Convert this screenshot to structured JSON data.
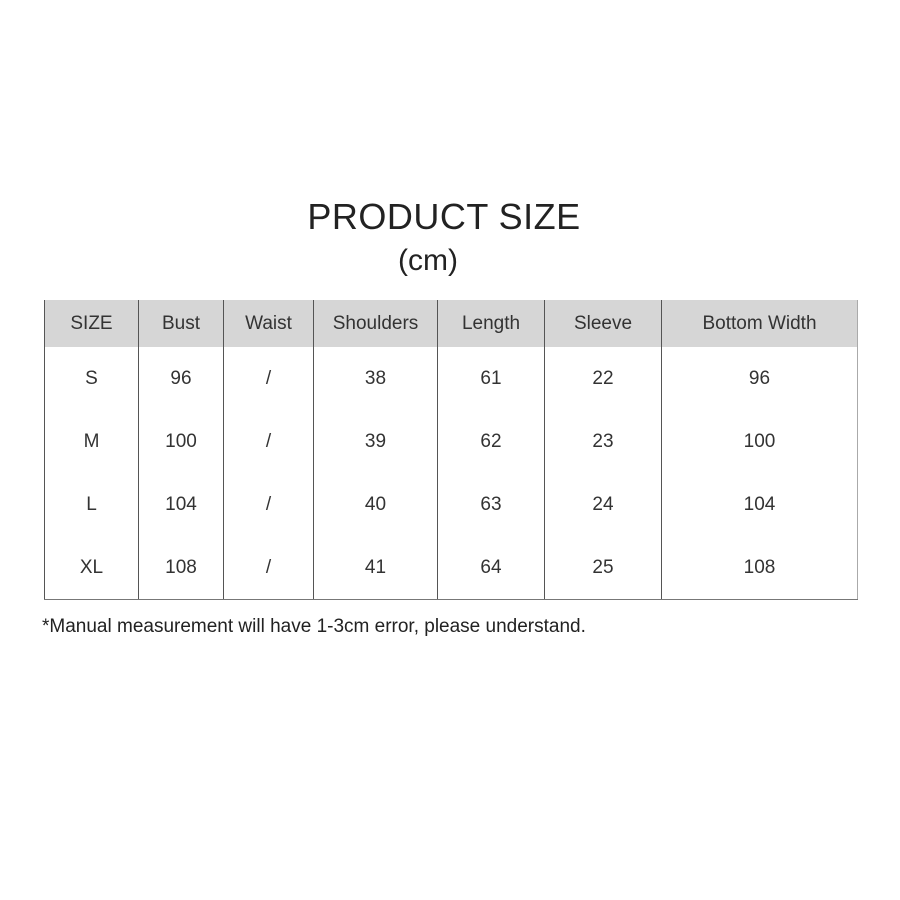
{
  "title": "PRODUCT SIZE",
  "unit": "(cm)",
  "table": {
    "headers": [
      "SIZE",
      "Bust",
      "Waist",
      "Shoulders",
      "Length",
      "Sleeve",
      "Bottom Width"
    ],
    "rows": [
      [
        "S",
        "96",
        "/",
        "38",
        "61",
        "22",
        "96"
      ],
      [
        "M",
        "100",
        "/",
        "39",
        "62",
        "23",
        "100"
      ],
      [
        "L",
        "104",
        "/",
        "40",
        "63",
        "24",
        "104"
      ],
      [
        "XL",
        "108",
        "/",
        "41",
        "64",
        "25",
        "108"
      ]
    ]
  },
  "note": "*Manual measurement will have 1-3cm error, please understand.",
  "colors": {
    "header_bg": "#d6d6d6",
    "text": "#222222"
  }
}
